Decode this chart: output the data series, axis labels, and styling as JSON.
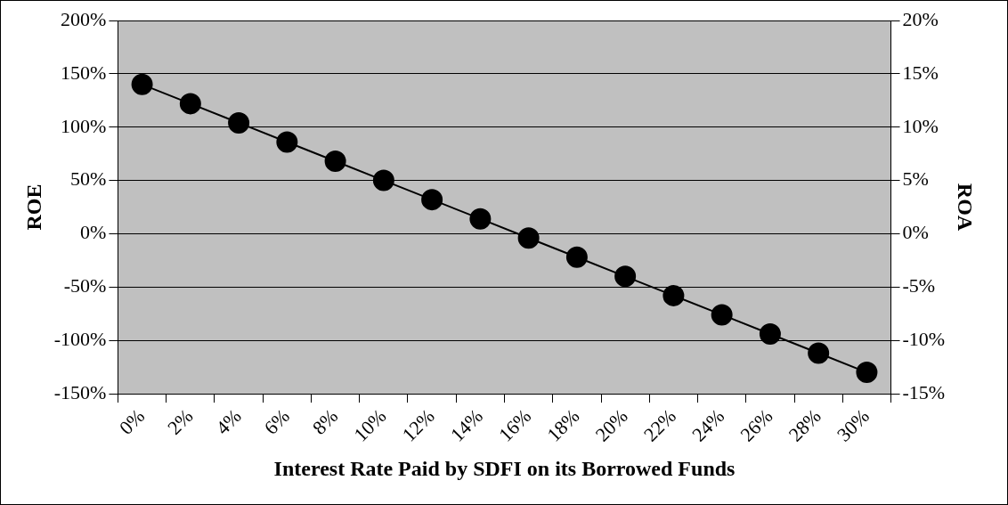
{
  "chart_data": {
    "type": "line",
    "xlabel": "Interest Rate Paid by SDFI on its Borrowed Funds",
    "ylabel": "ROE",
    "y2label": "ROA",
    "categories": [
      "0%",
      "2%",
      "4%",
      "6%",
      "8%",
      "10%",
      "12%",
      "14%",
      "16%",
      "18%",
      "20%",
      "22%",
      "24%",
      "26%",
      "28%",
      "30%"
    ],
    "series": [
      {
        "color": "#000000",
        "values": [
          140,
          122,
          104,
          86,
          68,
          50,
          32,
          14,
          -4,
          -22,
          -40,
          -58,
          -76,
          -94,
          -112,
          -130
        ]
      }
    ],
    "ylim": [
      -150,
      200
    ],
    "yticks": [
      {
        "value": -150,
        "label": "-150%"
      },
      {
        "value": -100,
        "label": "-100%"
      },
      {
        "value": -50,
        "label": "-50%"
      },
      {
        "value": 0,
        "label": "0%"
      },
      {
        "value": 50,
        "label": "50%"
      },
      {
        "value": 100,
        "label": "100%"
      },
      {
        "value": 150,
        "label": "150%"
      },
      {
        "value": 200,
        "label": "200%"
      }
    ],
    "y2lim": [
      -15,
      20
    ],
    "y2ticks": [
      {
        "value": -15,
        "label": "-15%"
      },
      {
        "value": -10,
        "label": "-10%"
      },
      {
        "value": -5,
        "label": "-5%"
      },
      {
        "value": 0,
        "label": "0%"
      },
      {
        "value": 5,
        "label": "5%"
      },
      {
        "value": 10,
        "label": "10%"
      },
      {
        "value": 15,
        "label": "15%"
      },
      {
        "value": 20,
        "label": "20%"
      }
    ],
    "grid": "y",
    "legend": false,
    "marker": "circle",
    "line_style": "solid"
  }
}
